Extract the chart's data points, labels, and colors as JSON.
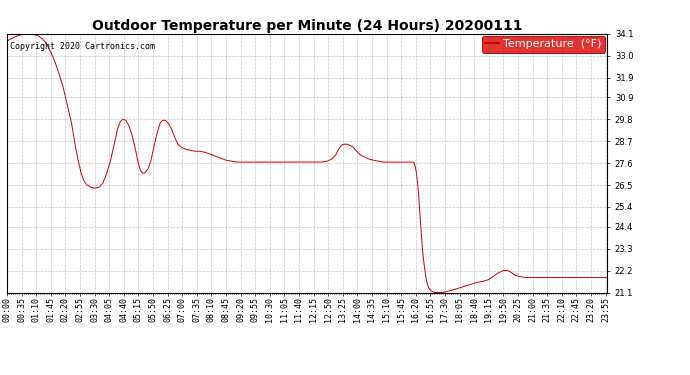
{
  "title": "Outdoor Temperature per Minute (24 Hours) 20200111",
  "copyright": "Copyright 2020 Cartronics.com",
  "legend_label": "Temperature  (°F)",
  "line_color": "#cc0000",
  "background_color": "#ffffff",
  "grid_color": "#bbbbbb",
  "ylim": [
    21.1,
    34.1
  ],
  "yticks": [
    21.1,
    22.2,
    23.3,
    24.4,
    25.4,
    26.5,
    27.6,
    28.7,
    29.8,
    30.9,
    31.9,
    33.0,
    34.1
  ],
  "total_minutes": 1440,
  "key_points": [
    [
      0,
      33.7
    ],
    [
      5,
      33.8
    ],
    [
      15,
      33.9
    ],
    [
      25,
      34.0
    ],
    [
      35,
      34.05
    ],
    [
      45,
      34.1
    ],
    [
      55,
      34.1
    ],
    [
      65,
      34.05
    ],
    [
      75,
      34.0
    ],
    [
      85,
      33.85
    ],
    [
      95,
      33.6
    ],
    [
      105,
      33.2
    ],
    [
      115,
      32.7
    ],
    [
      125,
      32.1
    ],
    [
      135,
      31.4
    ],
    [
      145,
      30.5
    ],
    [
      155,
      29.6
    ],
    [
      162,
      28.7
    ],
    [
      170,
      27.8
    ],
    [
      178,
      27.1
    ],
    [
      185,
      26.7
    ],
    [
      192,
      26.5
    ],
    [
      200,
      26.4
    ],
    [
      208,
      26.35
    ],
    [
      215,
      26.35
    ],
    [
      222,
      26.4
    ],
    [
      230,
      26.6
    ],
    [
      238,
      27.0
    ],
    [
      248,
      27.7
    ],
    [
      258,
      28.6
    ],
    [
      265,
      29.3
    ],
    [
      272,
      29.7
    ],
    [
      278,
      29.8
    ],
    [
      285,
      29.75
    ],
    [
      292,
      29.5
    ],
    [
      300,
      29.0
    ],
    [
      308,
      28.3
    ],
    [
      315,
      27.6
    ],
    [
      320,
      27.25
    ],
    [
      325,
      27.1
    ],
    [
      330,
      27.1
    ],
    [
      338,
      27.3
    ],
    [
      345,
      27.7
    ],
    [
      352,
      28.4
    ],
    [
      360,
      29.1
    ],
    [
      367,
      29.6
    ],
    [
      373,
      29.75
    ],
    [
      380,
      29.75
    ],
    [
      387,
      29.6
    ],
    [
      395,
      29.3
    ],
    [
      403,
      28.85
    ],
    [
      410,
      28.55
    ],
    [
      418,
      28.4
    ],
    [
      428,
      28.3
    ],
    [
      438,
      28.25
    ],
    [
      450,
      28.2
    ],
    [
      462,
      28.2
    ],
    [
      474,
      28.15
    ],
    [
      488,
      28.05
    ],
    [
      500,
      27.95
    ],
    [
      512,
      27.85
    ],
    [
      525,
      27.75
    ],
    [
      538,
      27.7
    ],
    [
      550,
      27.65
    ],
    [
      562,
      27.65
    ],
    [
      575,
      27.65
    ],
    [
      590,
      27.65
    ],
    [
      605,
      27.65
    ],
    [
      620,
      27.65
    ],
    [
      635,
      27.65
    ],
    [
      650,
      27.65
    ],
    [
      665,
      27.65
    ],
    [
      680,
      27.65
    ],
    [
      695,
      27.65
    ],
    [
      710,
      27.65
    ],
    [
      725,
      27.65
    ],
    [
      740,
      27.65
    ],
    [
      755,
      27.65
    ],
    [
      768,
      27.7
    ],
    [
      778,
      27.8
    ],
    [
      788,
      28.0
    ],
    [
      795,
      28.3
    ],
    [
      802,
      28.5
    ],
    [
      808,
      28.55
    ],
    [
      815,
      28.55
    ],
    [
      822,
      28.5
    ],
    [
      830,
      28.4
    ],
    [
      838,
      28.2
    ],
    [
      848,
      28.0
    ],
    [
      858,
      27.9
    ],
    [
      868,
      27.8
    ],
    [
      878,
      27.75
    ],
    [
      890,
      27.7
    ],
    [
      902,
      27.65
    ],
    [
      915,
      27.65
    ],
    [
      930,
      27.65
    ],
    [
      945,
      27.65
    ],
    [
      958,
      27.65
    ],
    [
      965,
      27.65
    ],
    [
      970,
      27.65
    ],
    [
      975,
      27.65
    ],
    [
      978,
      27.5
    ],
    [
      981,
      27.2
    ],
    [
      984,
      26.7
    ],
    [
      987,
      26.0
    ],
    [
      990,
      25.1
    ],
    [
      993,
      24.2
    ],
    [
      996,
      23.3
    ],
    [
      999,
      22.7
    ],
    [
      1002,
      22.2
    ],
    [
      1005,
      21.8
    ],
    [
      1008,
      21.5
    ],
    [
      1012,
      21.3
    ],
    [
      1016,
      21.2
    ],
    [
      1020,
      21.15
    ],
    [
      1025,
      21.1
    ],
    [
      1035,
      21.1
    ],
    [
      1045,
      21.1
    ],
    [
      1055,
      21.15
    ],
    [
      1065,
      21.2
    ],
    [
      1080,
      21.3
    ],
    [
      1095,
      21.4
    ],
    [
      1110,
      21.5
    ],
    [
      1125,
      21.6
    ],
    [
      1140,
      21.65
    ],
    [
      1155,
      21.75
    ],
    [
      1165,
      21.9
    ],
    [
      1175,
      22.05
    ],
    [
      1185,
      22.15
    ],
    [
      1190,
      22.2
    ],
    [
      1195,
      22.2
    ],
    [
      1200,
      22.2
    ],
    [
      1205,
      22.15
    ],
    [
      1210,
      22.1
    ],
    [
      1215,
      22.0
    ],
    [
      1220,
      21.95
    ],
    [
      1230,
      21.9
    ],
    [
      1245,
      21.85
    ],
    [
      1260,
      21.85
    ],
    [
      1275,
      21.85
    ],
    [
      1290,
      21.85
    ],
    [
      1305,
      21.85
    ],
    [
      1320,
      21.85
    ],
    [
      1335,
      21.85
    ],
    [
      1350,
      21.85
    ],
    [
      1365,
      21.85
    ],
    [
      1380,
      21.85
    ],
    [
      1395,
      21.85
    ],
    [
      1410,
      21.85
    ],
    [
      1425,
      21.85
    ],
    [
      1439,
      21.85
    ]
  ],
  "title_fontsize": 10,
  "tick_fontsize": 6,
  "copyright_fontsize": 6,
  "legend_fontsize": 8
}
